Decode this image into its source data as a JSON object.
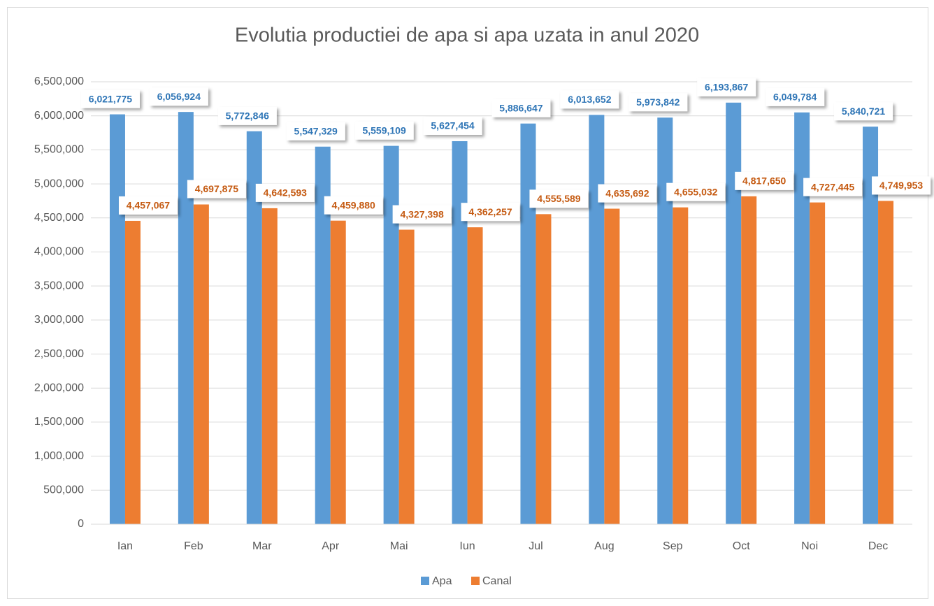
{
  "chart_data": {
    "type": "bar",
    "title": "Evolutia productiei de apa si apa uzata in anul 2020",
    "categories": [
      "Ian",
      "Feb",
      "Mar",
      "Apr",
      "Mai",
      "Iun",
      "Jul",
      "Aug",
      "Sep",
      "Oct",
      "Noi",
      "Dec"
    ],
    "series": [
      {
        "name": "Apa",
        "color": "#5b9bd5",
        "values": [
          6021775,
          6056924,
          5772846,
          5547329,
          5559109,
          5627454,
          5886647,
          6013652,
          5973842,
          6193867,
          6049784,
          5840721
        ],
        "value_labels": [
          "6,021,775",
          "6,056,924",
          "5,772,846",
          "5,547,329",
          "5,559,109",
          "5,627,454",
          "5,886,647",
          "6,013,652",
          "5,973,842",
          "6,193,867",
          "6,049,784",
          "5,840,721"
        ]
      },
      {
        "name": "Canal",
        "color": "#ed7d31",
        "values": [
          4457067,
          4697875,
          4642593,
          4459880,
          4327398,
          4362257,
          4555589,
          4635692,
          4655032,
          4817650,
          4727445,
          4749953
        ],
        "value_labels": [
          "4,457,067",
          "4,697,875",
          "4,642,593",
          "4,459,880",
          "4,327,398",
          "4,362,257",
          "4,555,589",
          "4,635,692",
          "4,655,032",
          "4,817,650",
          "4,727,445",
          "4,749,953"
        ]
      }
    ],
    "ylim": [
      0,
      6500000
    ],
    "yticks": [
      0,
      {
        "value": 500000,
        "label": "500,000"
      },
      {
        "value": 1000000,
        "label": "1,000,000"
      },
      {
        "value": 1500000,
        "label": "1,500,000"
      },
      {
        "value": 2000000,
        "label": "2,000,000"
      },
      {
        "value": 2500000,
        "label": "2,500,000"
      },
      {
        "value": 3000000,
        "label": "3,000,000"
      },
      {
        "value": 3500000,
        "label": "3,500,000"
      },
      {
        "value": 4000000,
        "label": "4,000,000"
      },
      {
        "value": 4500000,
        "label": "4,500,000"
      },
      {
        "value": 5000000,
        "label": "5,000,000"
      },
      {
        "value": 5500000,
        "label": "5,500,000"
      },
      {
        "value": 6000000,
        "label": "6,000,000"
      },
      {
        "value": 6500000,
        "label": "6,500,000"
      }
    ],
    "grid": true,
    "legend": "bottom"
  }
}
